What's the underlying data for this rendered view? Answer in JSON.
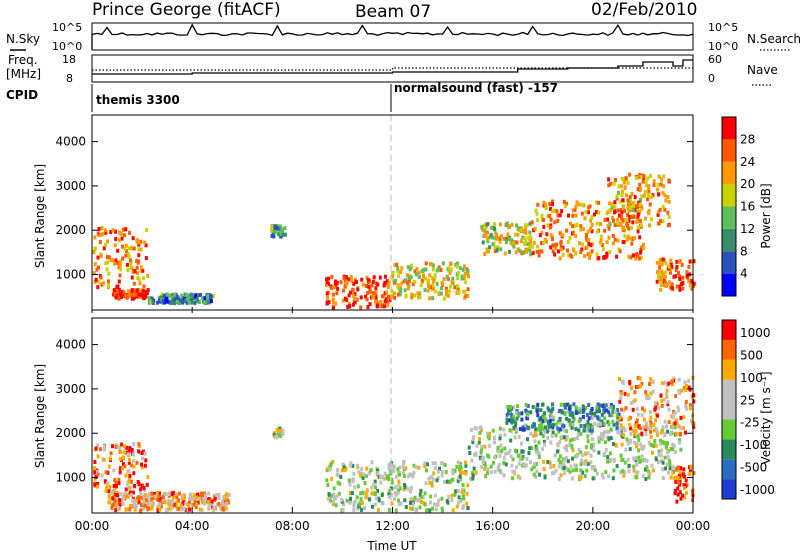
{
  "header": {
    "station": "Prince George (fitACF)",
    "beam": "Beam 07",
    "date": "02/Feb/2010"
  },
  "strip_labels": {
    "nsky": "N.Sky",
    "nsky_ticks": [
      "10^5",
      "10^0"
    ],
    "nsearch": "N.Search",
    "nsearch_ticks": [
      "10^5",
      "10^0"
    ],
    "freq_label": "Freq.",
    "freq_unit": "[MHz]",
    "freq_ticks": [
      "18",
      "8"
    ],
    "nave": "Nave",
    "nave_ticks": [
      "60",
      "0"
    ],
    "cpid": "CPID"
  },
  "cpid_segments": [
    {
      "label": "themis 3300",
      "start_hour": 0
    },
    {
      "label": "normalsound (fast) -157",
      "start_hour": 12
    }
  ],
  "time_axis": {
    "label": "Time UT",
    "ticks": [
      "00:00",
      "04:00",
      "08:00",
      "12:00",
      "16:00",
      "20:00",
      "00:00"
    ]
  },
  "colors": {
    "power_scale": [
      "#0000ff",
      "#2a52be",
      "#3a8c6e",
      "#5fbf5f",
      "#c8d400",
      "#ff9a00",
      "#ff5a00",
      "#ff0000"
    ],
    "velocity_scale": [
      "#1f3fcf",
      "#2a6ebf",
      "#2b8a5a",
      "#66cc33",
      "#c0c0c0",
      "#c0c0c0",
      "#ffaa00",
      "#ff6600",
      "#ff0000"
    ],
    "scatter_ground": "#b8b8b8"
  },
  "chart_data": [
    {
      "type": "heatmap",
      "title": "",
      "xlabel": "Time UT",
      "ylabel": "Slant Range [km]",
      "x_range_hours": [
        0,
        24
      ],
      "ylim": [
        200,
        4600
      ],
      "y_ticks": [
        "1000",
        "2000",
        "3000",
        "4000"
      ],
      "colorbar_label": "Power [dB]",
      "colorbar_ticks": [
        "4",
        "8",
        "12",
        "16",
        "20",
        "24",
        "28"
      ],
      "echo_regions": [
        {
          "t0": 0.0,
          "t1": 2.2,
          "r0": 700,
          "r1": 2100,
          "level": 0.75
        },
        {
          "t0": 0.8,
          "t1": 2.2,
          "r0": 500,
          "r1": 700,
          "level": 0.9
        },
        {
          "t0": 2.2,
          "t1": 4.8,
          "r0": 400,
          "r1": 600,
          "level": 0.3
        },
        {
          "t0": 7.1,
          "t1": 7.7,
          "r0": 1900,
          "r1": 2150,
          "level": 0.35
        },
        {
          "t0": 9.3,
          "t1": 11.9,
          "r0": 300,
          "r1": 1000,
          "level": 0.85
        },
        {
          "t0": 11.9,
          "t1": 15.0,
          "r0": 500,
          "r1": 1300,
          "level": 0.6
        },
        {
          "t0": 15.5,
          "t1": 17.5,
          "r0": 1500,
          "r1": 2200,
          "level": 0.55
        },
        {
          "t0": 17.5,
          "t1": 22.0,
          "r0": 1400,
          "r1": 2700,
          "level": 0.75
        },
        {
          "t0": 20.5,
          "t1": 23.0,
          "r0": 2100,
          "r1": 3300,
          "level": 0.7
        },
        {
          "t0": 22.5,
          "t1": 24.0,
          "r0": 700,
          "r1": 1400,
          "level": 0.8
        }
      ]
    },
    {
      "type": "heatmap",
      "title": "",
      "xlabel": "Time UT",
      "ylabel": "Slant Range [km]",
      "x_range_hours": [
        0,
        24
      ],
      "ylim": [
        200,
        4600
      ],
      "y_ticks": [
        "1000",
        "2000",
        "3000",
        "4000"
      ],
      "colorbar_label": "Velocity [m s⁻¹]",
      "colorbar_ticks": [
        "1000",
        "500",
        "100",
        "25",
        "-25",
        "-100",
        "-500",
        "-1000"
      ],
      "echo_regions": [
        {
          "t0": 0.0,
          "t1": 2.2,
          "r0": 700,
          "r1": 1800,
          "level": 0.82
        },
        {
          "t0": 0.6,
          "t1": 5.5,
          "r0": 300,
          "r1": 700,
          "level": 0.72
        },
        {
          "t0": 7.2,
          "t1": 7.6,
          "r0": 1950,
          "r1": 2150,
          "level": 0.5
        },
        {
          "t0": 9.3,
          "t1": 15.0,
          "r0": 300,
          "r1": 1400,
          "level": 0.5
        },
        {
          "t0": 15.0,
          "t1": 23.5,
          "r0": 1000,
          "r1": 2200,
          "level": 0.5
        },
        {
          "t0": 16.5,
          "t1": 21.0,
          "r0": 2100,
          "r1": 2700,
          "level": 0.25
        },
        {
          "t0": 21.0,
          "t1": 24.0,
          "r0": 2000,
          "r1": 3300,
          "level": 0.75
        },
        {
          "t0": 23.2,
          "t1": 24.0,
          "r0": 500,
          "r1": 1300,
          "level": 0.9
        }
      ]
    }
  ]
}
